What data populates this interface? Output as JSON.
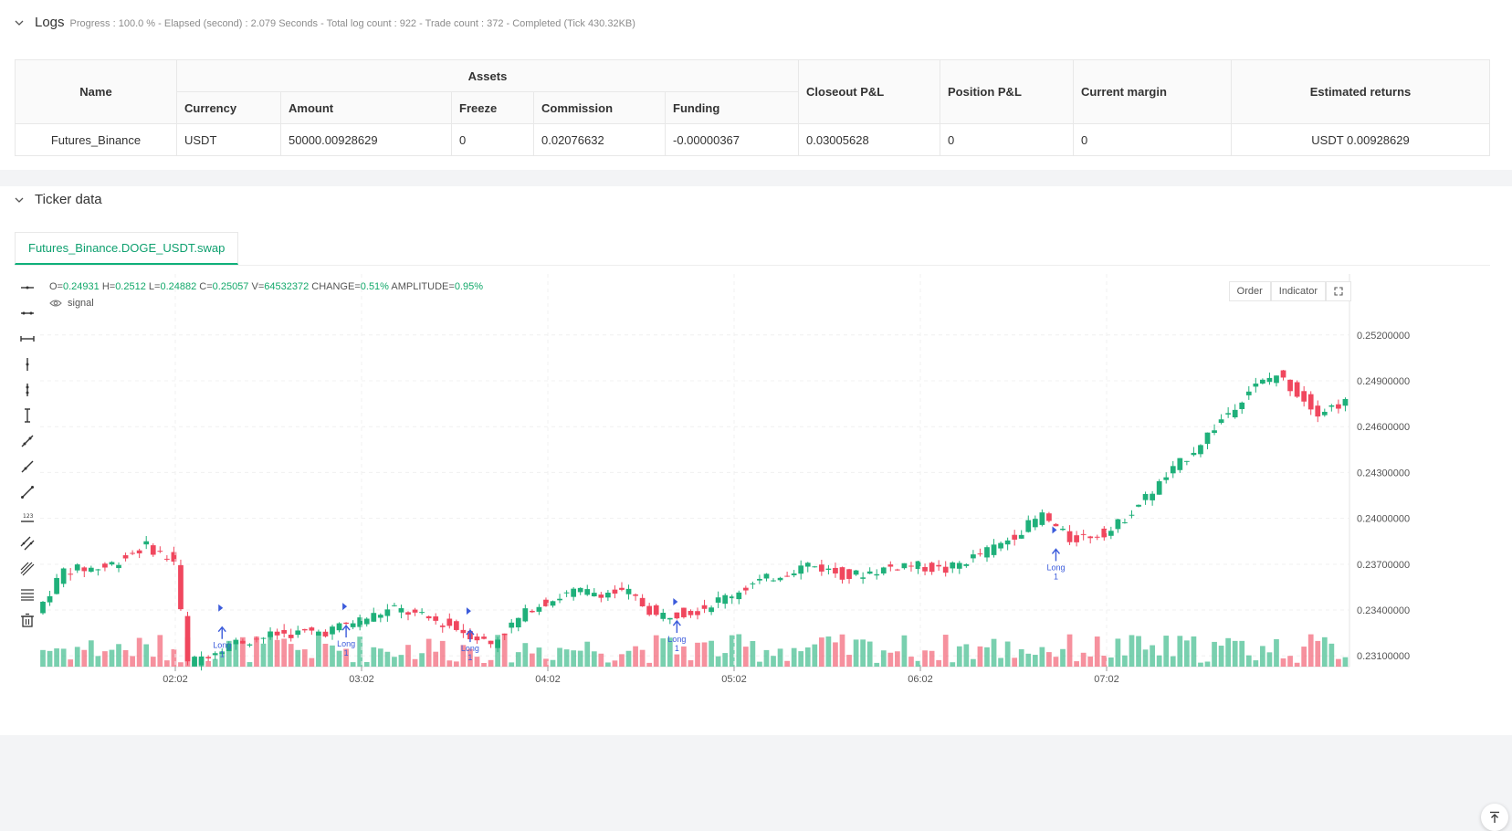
{
  "logs": {
    "title": "Logs",
    "summary": "Progress : 100.0 % - Elapsed (second) : 2.079  Seconds - Total log count : 922 - Trade count : 372 - Completed (Tick 430.32KB)"
  },
  "assets_table": {
    "col_name": "Name",
    "col_assets": "Assets",
    "col_currency": "Currency",
    "col_amount": "Amount",
    "col_freeze": "Freeze",
    "col_commission": "Commission",
    "col_funding": "Funding",
    "col_closeout": "Closeout P&L",
    "col_position": "Position P&L",
    "col_margin": "Current margin",
    "col_returns": "Estimated returns",
    "row": {
      "name": "Futures_Binance",
      "currency": "USDT",
      "amount": "50000.00928629",
      "freeze": "0",
      "commission": "0.02076632",
      "funding": "-0.00000367",
      "closeout": "0.03005628",
      "position": "0",
      "margin": "0",
      "returns": "USDT 0.00928629"
    }
  },
  "ticker": {
    "title": "Ticker data",
    "tab": "Futures_Binance.DOGE_USDT.swap",
    "ohlc": {
      "o_label": "O=",
      "o": "0.24931",
      "h_label": "H=",
      "h": "0.2512",
      "l_label": "L=",
      "l": "0.24882",
      "c_label": "C=",
      "c": "0.25057",
      "v_label": "V=",
      "v": "64532372",
      "change_label": "CHANGE=",
      "change": "0.51%",
      "amp_label": "AMPLITUDE=",
      "amp": "0.95%"
    },
    "signal_label": "signal",
    "order_btn": "Order",
    "indicator_btn": "Indicator"
  },
  "chart_data": {
    "type": "candlestick",
    "y_ticks": [
      "0.25200000",
      "0.24900000",
      "0.24600000",
      "0.24300000",
      "0.24000000",
      "0.23700000",
      "0.23400000",
      "0.23100000"
    ],
    "y_tick_values": [
      0.252,
      0.249,
      0.246,
      0.243,
      0.24,
      0.237,
      0.234,
      0.231
    ],
    "x_ticks": [
      "02:02",
      "03:02",
      "04:02",
      "05:02",
      "06:02",
      "07:02"
    ],
    "signals": [
      {
        "label": "Long",
        "qty": "1",
        "candle": 26,
        "price": 0.2333
      },
      {
        "label": "Long",
        "qty": "1",
        "candle": 44,
        "price": 0.2334
      },
      {
        "label": "Long",
        "qty": "1",
        "candle": 62,
        "price": 0.2331
      },
      {
        "label": "Long",
        "qty": "1",
        "candle": 92,
        "price": 0.2337
      },
      {
        "label": "Long",
        "qty": "1",
        "candle": 147,
        "price": 0.2384
      }
    ],
    "up_color": "#1fb07a",
    "down_color": "#f0475e"
  }
}
